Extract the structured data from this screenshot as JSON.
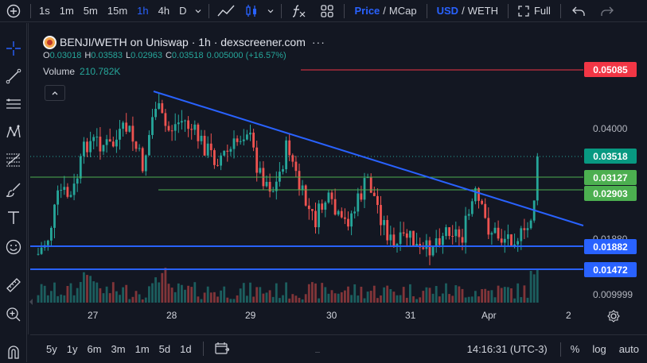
{
  "toolbar": {
    "add_icon": "plus-circle-icon",
    "timeframes": [
      "1s",
      "1m",
      "5m",
      "15m",
      "1h",
      "4h",
      "D"
    ],
    "active_timeframe": "1h",
    "price_label": "Price",
    "price_sep": "/",
    "mcap_label": "MCap",
    "usd_label": "USD",
    "weth_sep": "/",
    "weth_label": "WETH",
    "full_label": "Full"
  },
  "legend": {
    "title": "BENJI/WETH on Uniswap · 1h · dexscreener.com",
    "o_label": "O",
    "o_value": "0.03018",
    "h_label": "H",
    "h_value": "0.03583",
    "l_label": "L",
    "l_value": "0.02963",
    "c_label": "C",
    "c_value": "0.03518",
    "change": "0.005000 (+16.57%)",
    "volume_label": "Volume",
    "volume_value": "210.782K"
  },
  "price_axis": {
    "labels": [
      "0.04000",
      "0.01880",
      "0.009999"
    ],
    "tags": [
      {
        "value": "0.05085",
        "color": "#f23645"
      },
      {
        "value": "0.03518",
        "color": "#089981"
      },
      {
        "value": "0.03127",
        "color": "#4caf50"
      },
      {
        "value": "0.02903",
        "color": "#4caf50"
      },
      {
        "value": "0.01882",
        "color": "#2962ff"
      },
      {
        "value": "0.01472",
        "color": "#2962ff"
      }
    ]
  },
  "time_axis": {
    "labels": [
      "27",
      "28",
      "29",
      "30",
      "31",
      "Apr",
      "2"
    ]
  },
  "bottom": {
    "ranges": [
      "5y",
      "1y",
      "6m",
      "3m",
      "1m",
      "5d",
      "1d"
    ],
    "clock": "14:16:31 (UTC-3)",
    "percent_label": "%",
    "log_label": "log",
    "auto_label": "auto"
  },
  "colors": {
    "up": "#26a69a",
    "down": "#ef5350",
    "trendline": "#2962ff",
    "resistance": "#f23645",
    "support_green": "#4caf50"
  }
}
